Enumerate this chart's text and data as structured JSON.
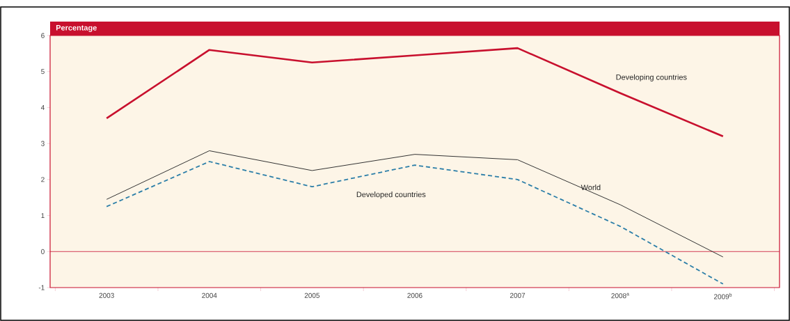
{
  "chart_data": {
    "type": "line",
    "title": "Percentage",
    "categories": [
      "2003",
      "2004",
      "2005",
      "2006",
      "2007",
      "2008$^{a}$",
      "2009$^{b}$"
    ],
    "series": [
      {
        "name": "Developing countries",
        "color": "#c8102e",
        "values": [
          3.7,
          5.6,
          5.25,
          5.45,
          5.65,
          4.4,
          3.2
        ]
      },
      {
        "name": "World",
        "color": "#333333",
        "values": [
          1.45,
          2.8,
          2.25,
          2.7,
          2.55,
          1.3,
          -0.15
        ]
      },
      {
        "name": "Developed countries",
        "color": "#2b7ea8",
        "line_style": "dashed",
        "values": [
          1.25,
          2.5,
          1.8,
          2.4,
          2.0,
          0.7,
          -0.9
        ]
      }
    ],
    "ylim": [
      -1,
      6
    ],
    "yticks": [
      -1,
      0,
      1,
      2,
      3,
      4,
      5,
      6
    ],
    "ref_lines": [
      {
        "axis": "y",
        "value": 0,
        "color": "#c8102e"
      }
    ],
    "marker": "none"
  }
}
